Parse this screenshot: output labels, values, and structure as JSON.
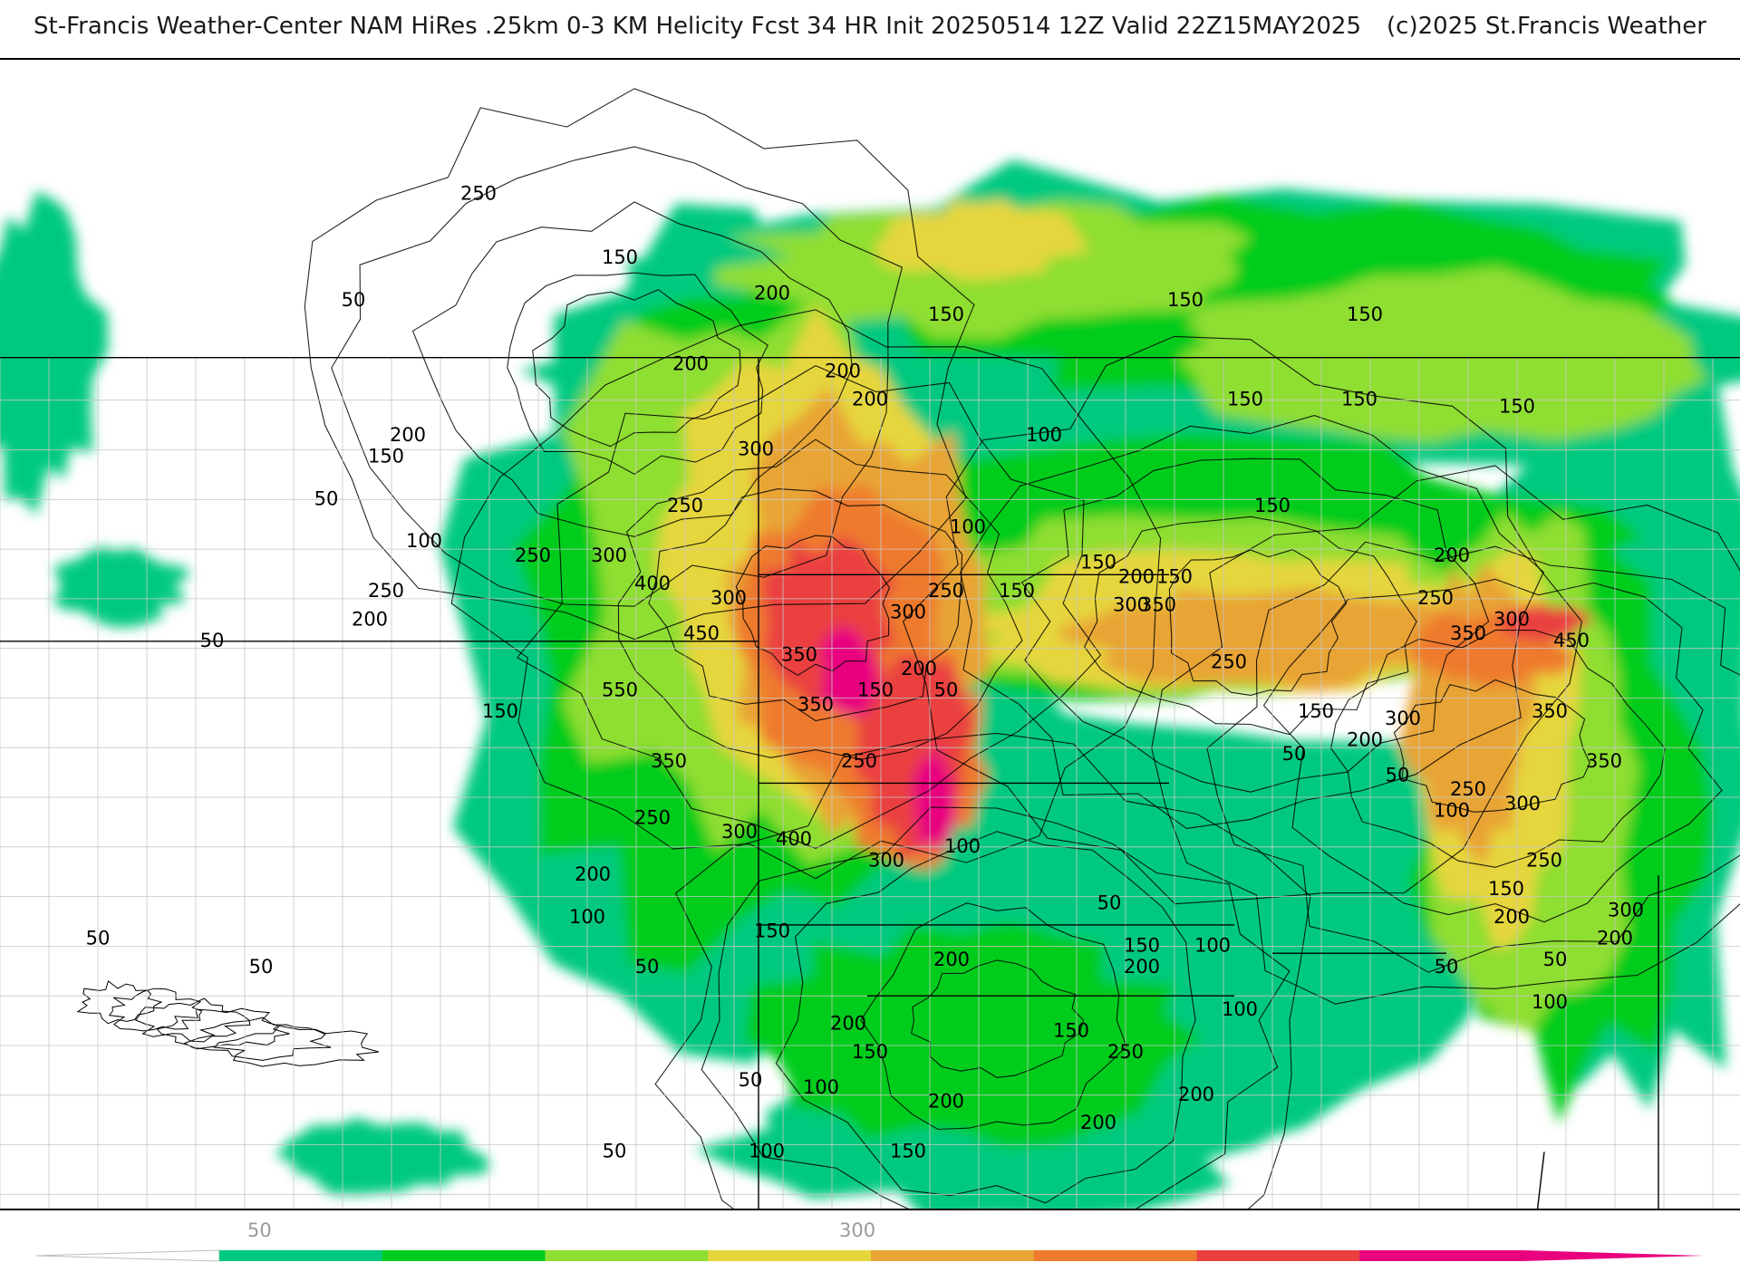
{
  "title": {
    "main": "St-Francis Weather-Center NAM HiRes .25km 0-3 KM Helicity Fcst 34 HR Init 20250514 12Z  Valid 22Z15MAY2025",
    "copyright": "(c)2025 St.Francis Weather"
  },
  "colors": {
    "c50": "#00c97f",
    "c100": "#00cc1e",
    "c150": "#8fde32",
    "c200": "#e6d63c",
    "c250": "#e8a435",
    "c300": "#ee7a2e",
    "c400": "#ea4040",
    "c500": "#e8007f",
    "state_lines": "#000000",
    "county_lines": "#c8c8c8"
  },
  "contour_labels": [
    {
      "text": "250",
      "lon": -109.2,
      "lat": 51.3
    },
    {
      "text": "150",
      "lon": -106.6,
      "lat": 50.4
    },
    {
      "text": "50",
      "lon": -111.5,
      "lat": 49.8
    },
    {
      "text": "200",
      "lon": -103.8,
      "lat": 49.9
    },
    {
      "text": "150",
      "lon": -100.6,
      "lat": 49.6
    },
    {
      "text": "150",
      "lon": -96.2,
      "lat": 49.8
    },
    {
      "text": "150",
      "lon": -92.9,
      "lat": 49.6
    },
    {
      "text": "200",
      "lon": -105.3,
      "lat": 48.9
    },
    {
      "text": "200",
      "lon": -102.5,
      "lat": 48.8
    },
    {
      "text": "150",
      "lon": -90.1,
      "lat": 48.3
    },
    {
      "text": "200",
      "lon": -102.0,
      "lat": 48.4
    },
    {
      "text": "150",
      "lon": -95.1,
      "lat": 48.4
    },
    {
      "text": "150",
      "lon": -93.0,
      "lat": 48.4
    },
    {
      "text": "200",
      "lon": -110.5,
      "lat": 47.9
    },
    {
      "text": "300",
      "lon": -104.1,
      "lat": 47.7
    },
    {
      "text": "100",
      "lon": -98.8,
      "lat": 47.9
    },
    {
      "text": "150",
      "lon": -110.9,
      "lat": 47.6
    },
    {
      "text": "50",
      "lon": -112.0,
      "lat": 47.0
    },
    {
      "text": "250",
      "lon": -105.4,
      "lat": 46.9
    },
    {
      "text": "150",
      "lon": -94.6,
      "lat": 46.9
    },
    {
      "text": "100",
      "lon": -110.2,
      "lat": 46.4
    },
    {
      "text": "100",
      "lon": -100.2,
      "lat": 46.6
    },
    {
      "text": "250",
      "lon": -108.2,
      "lat": 46.2
    },
    {
      "text": "300",
      "lon": -106.8,
      "lat": 46.2
    },
    {
      "text": "150",
      "lon": -97.8,
      "lat": 46.1
    },
    {
      "text": "200",
      "lon": -91.3,
      "lat": 46.2
    },
    {
      "text": "150",
      "lon": -96.4,
      "lat": 45.9
    },
    {
      "text": "200",
      "lon": -97.1,
      "lat": 45.9
    },
    {
      "text": "400",
      "lon": -106.0,
      "lat": 45.8
    },
    {
      "text": "150",
      "lon": -99.3,
      "lat": 45.7
    },
    {
      "text": "250",
      "lon": -100.6,
      "lat": 45.7
    },
    {
      "text": "250",
      "lon": -110.9,
      "lat": 45.7
    },
    {
      "text": "300",
      "lon": -104.6,
      "lat": 45.6
    },
    {
      "text": "250",
      "lon": -91.6,
      "lat": 45.6
    },
    {
      "text": "200",
      "lon": -111.2,
      "lat": 45.3
    },
    {
      "text": "300",
      "lon": -97.2,
      "lat": 45.5
    },
    {
      "text": "350",
      "lon": -96.7,
      "lat": 45.5
    },
    {
      "text": "300",
      "lon": -101.3,
      "lat": 45.4
    },
    {
      "text": "300",
      "lon": -90.2,
      "lat": 45.3
    },
    {
      "text": "450",
      "lon": -105.1,
      "lat": 45.1
    },
    {
      "text": "350",
      "lon": -91.0,
      "lat": 45.1
    },
    {
      "text": "450",
      "lon": -89.1,
      "lat": 45.0
    },
    {
      "text": "50",
      "lon": -114.1,
      "lat": 45.0
    },
    {
      "text": "350",
      "lon": -103.3,
      "lat": 44.8
    },
    {
      "text": "250",
      "lon": -95.4,
      "lat": 44.7
    },
    {
      "text": "200",
      "lon": -101.1,
      "lat": 44.6
    },
    {
      "text": "550",
      "lon": -106.6,
      "lat": 44.3
    },
    {
      "text": "150",
      "lon": -101.9,
      "lat": 44.3
    },
    {
      "text": "50",
      "lon": -100.6,
      "lat": 44.3
    },
    {
      "text": "150",
      "lon": -108.8,
      "lat": 44.0
    },
    {
      "text": "350",
      "lon": -103.0,
      "lat": 44.1
    },
    {
      "text": "150",
      "lon": -93.8,
      "lat": 44.0
    },
    {
      "text": "350",
      "lon": -89.5,
      "lat": 44.0
    },
    {
      "text": "300",
      "lon": -92.2,
      "lat": 43.9
    },
    {
      "text": "200",
      "lon": -92.9,
      "lat": 43.6
    },
    {
      "text": "50",
      "lon": -94.2,
      "lat": 43.4
    },
    {
      "text": "350",
      "lon": -88.5,
      "lat": 43.3
    },
    {
      "text": "350",
      "lon": -105.7,
      "lat": 43.3
    },
    {
      "text": "250",
      "lon": -102.2,
      "lat": 43.3
    },
    {
      "text": "50",
      "lon": -92.3,
      "lat": 43.1
    },
    {
      "text": "250",
      "lon": -91.0,
      "lat": 42.9
    },
    {
      "text": "100",
      "lon": -91.3,
      "lat": 42.6
    },
    {
      "text": "300",
      "lon": -90.0,
      "lat": 42.7
    },
    {
      "text": "250",
      "lon": -106.0,
      "lat": 42.5
    },
    {
      "text": "300",
      "lon": -104.4,
      "lat": 42.3
    },
    {
      "text": "400",
      "lon": -103.4,
      "lat": 42.2
    },
    {
      "text": "100",
      "lon": -100.3,
      "lat": 42.1
    },
    {
      "text": "300",
      "lon": -101.7,
      "lat": 41.9
    },
    {
      "text": "250",
      "lon": -89.6,
      "lat": 41.9
    },
    {
      "text": "200",
      "lon": -107.1,
      "lat": 41.7
    },
    {
      "text": "150",
      "lon": -90.3,
      "lat": 41.5
    },
    {
      "text": "50",
      "lon": -97.6,
      "lat": 41.3
    },
    {
      "text": "100",
      "lon": -107.2,
      "lat": 41.1
    },
    {
      "text": "200",
      "lon": -90.2,
      "lat": 41.1
    },
    {
      "text": "300",
      "lon": -88.1,
      "lat": 41.2
    },
    {
      "text": "150",
      "lon": -103.8,
      "lat": 40.9
    },
    {
      "text": "50",
      "lon": -116.2,
      "lat": 40.8
    },
    {
      "text": "150",
      "lon": -97.0,
      "lat": 40.7
    },
    {
      "text": "100",
      "lon": -95.7,
      "lat": 40.7
    },
    {
      "text": "200",
      "lon": -88.3,
      "lat": 40.8
    },
    {
      "text": "50",
      "lon": -113.2,
      "lat": 40.4
    },
    {
      "text": "200",
      "lon": -100.5,
      "lat": 40.5
    },
    {
      "text": "200",
      "lon": -97.0,
      "lat": 40.4
    },
    {
      "text": "50",
      "lon": -106.1,
      "lat": 40.4
    },
    {
      "text": "50",
      "lon": -91.4,
      "lat": 40.4
    },
    {
      "text": "50",
      "lon": -89.4,
      "lat": 40.5
    },
    {
      "text": "100",
      "lon": -89.5,
      "lat": 39.9
    },
    {
      "text": "100",
      "lon": -95.2,
      "lat": 39.8
    },
    {
      "text": "200",
      "lon": -102.4,
      "lat": 39.6
    },
    {
      "text": "150",
      "lon": -98.3,
      "lat": 39.5
    },
    {
      "text": "250",
      "lon": -97.3,
      "lat": 39.2
    },
    {
      "text": "150",
      "lon": -102.0,
      "lat": 39.2
    },
    {
      "text": "50",
      "lon": -104.2,
      "lat": 38.8
    },
    {
      "text": "100",
      "lon": -102.9,
      "lat": 38.7
    },
    {
      "text": "200",
      "lon": -100.6,
      "lat": 38.5
    },
    {
      "text": "200",
      "lon": -96.0,
      "lat": 38.6
    },
    {
      "text": "200",
      "lon": -97.8,
      "lat": 38.2
    },
    {
      "text": "50",
      "lon": -106.7,
      "lat": 37.8
    },
    {
      "text": "100",
      "lon": -103.9,
      "lat": 37.8
    },
    {
      "text": "150",
      "lon": -101.3,
      "lat": 37.8
    }
  ],
  "colorbar": {
    "ticks": [
      {
        "label": "50",
        "value": 50
      },
      {
        "label": "300",
        "value": 300
      }
    ],
    "range": [
      0,
      550
    ]
  }
}
